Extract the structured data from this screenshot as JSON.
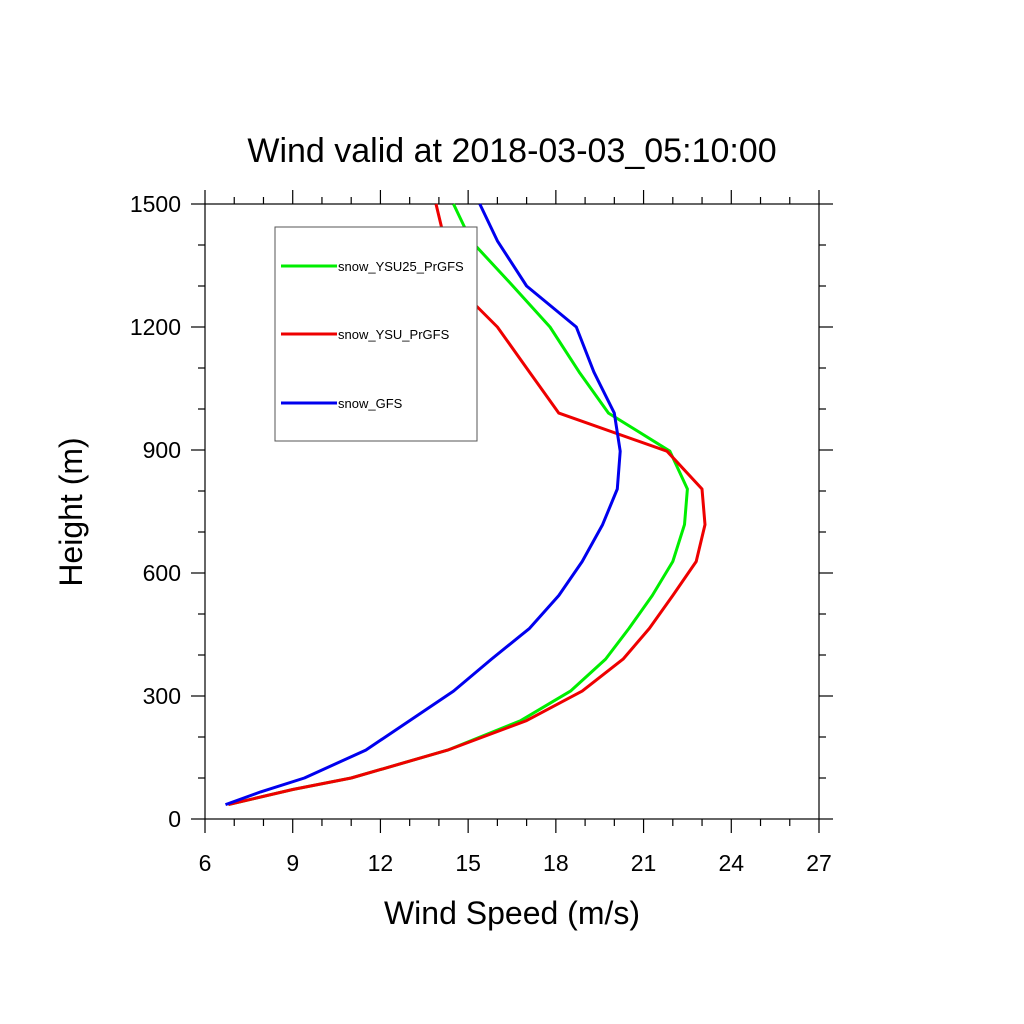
{
  "chart_data": {
    "type": "line",
    "title": "Wind valid at 2018-03-03_05:10:00",
    "xlabel": "Wind Speed (m/s)",
    "ylabel": "Height (m)",
    "xlim": [
      6,
      27
    ],
    "ylim": [
      0,
      1500
    ],
    "x_ticks": [
      6,
      9,
      12,
      15,
      18,
      21,
      24,
      27
    ],
    "y_ticks": [
      0,
      300,
      600,
      900,
      1200,
      1500
    ],
    "grid": false,
    "legend_position": "top-left",
    "series": [
      {
        "name": "snow_YSU25_PrGFS",
        "color": "#00ee00",
        "points": [
          [
            6.8,
            35
          ],
          [
            9.0,
            72
          ],
          [
            11.0,
            100
          ],
          [
            14.3,
            168
          ],
          [
            16.8,
            240
          ],
          [
            18.5,
            312
          ],
          [
            19.7,
            390
          ],
          [
            20.5,
            465
          ],
          [
            21.3,
            545
          ],
          [
            22.0,
            628
          ],
          [
            22.4,
            718
          ],
          [
            22.5,
            805
          ],
          [
            21.9,
            897
          ],
          [
            19.8,
            990
          ],
          [
            18.8,
            1090
          ],
          [
            17.8,
            1200
          ],
          [
            16.4,
            1310
          ],
          [
            15.1,
            1410
          ],
          [
            14.5,
            1500
          ]
        ]
      },
      {
        "name": "snow_YSU_PrGFS",
        "color": "#ee0000",
        "points": [
          [
            6.8,
            35
          ],
          [
            9.0,
            72
          ],
          [
            11.0,
            100
          ],
          [
            14.3,
            168
          ],
          [
            17.0,
            240
          ],
          [
            18.9,
            312
          ],
          [
            20.3,
            390
          ],
          [
            21.2,
            465
          ],
          [
            22.0,
            545
          ],
          [
            22.8,
            628
          ],
          [
            23.1,
            718
          ],
          [
            23.0,
            805
          ],
          [
            21.8,
            897
          ],
          [
            18.1,
            990
          ],
          [
            17.1,
            1090
          ],
          [
            16.0,
            1200
          ],
          [
            14.6,
            1300
          ],
          [
            14.2,
            1410
          ],
          [
            13.9,
            1500
          ]
        ]
      },
      {
        "name": "snow_GFS",
        "color": "#0000ee",
        "points": [
          [
            6.7,
            35
          ],
          [
            7.9,
            66
          ],
          [
            9.4,
            100
          ],
          [
            11.5,
            168
          ],
          [
            13.0,
            240
          ],
          [
            14.5,
            312
          ],
          [
            15.8,
            390
          ],
          [
            17.1,
            465
          ],
          [
            18.1,
            545
          ],
          [
            18.9,
            628
          ],
          [
            19.6,
            718
          ],
          [
            20.1,
            805
          ],
          [
            20.2,
            897
          ],
          [
            20.0,
            990
          ],
          [
            19.3,
            1090
          ],
          [
            18.7,
            1200
          ],
          [
            17.0,
            1300
          ],
          [
            16.0,
            1410
          ],
          [
            15.4,
            1500
          ]
        ]
      }
    ]
  }
}
